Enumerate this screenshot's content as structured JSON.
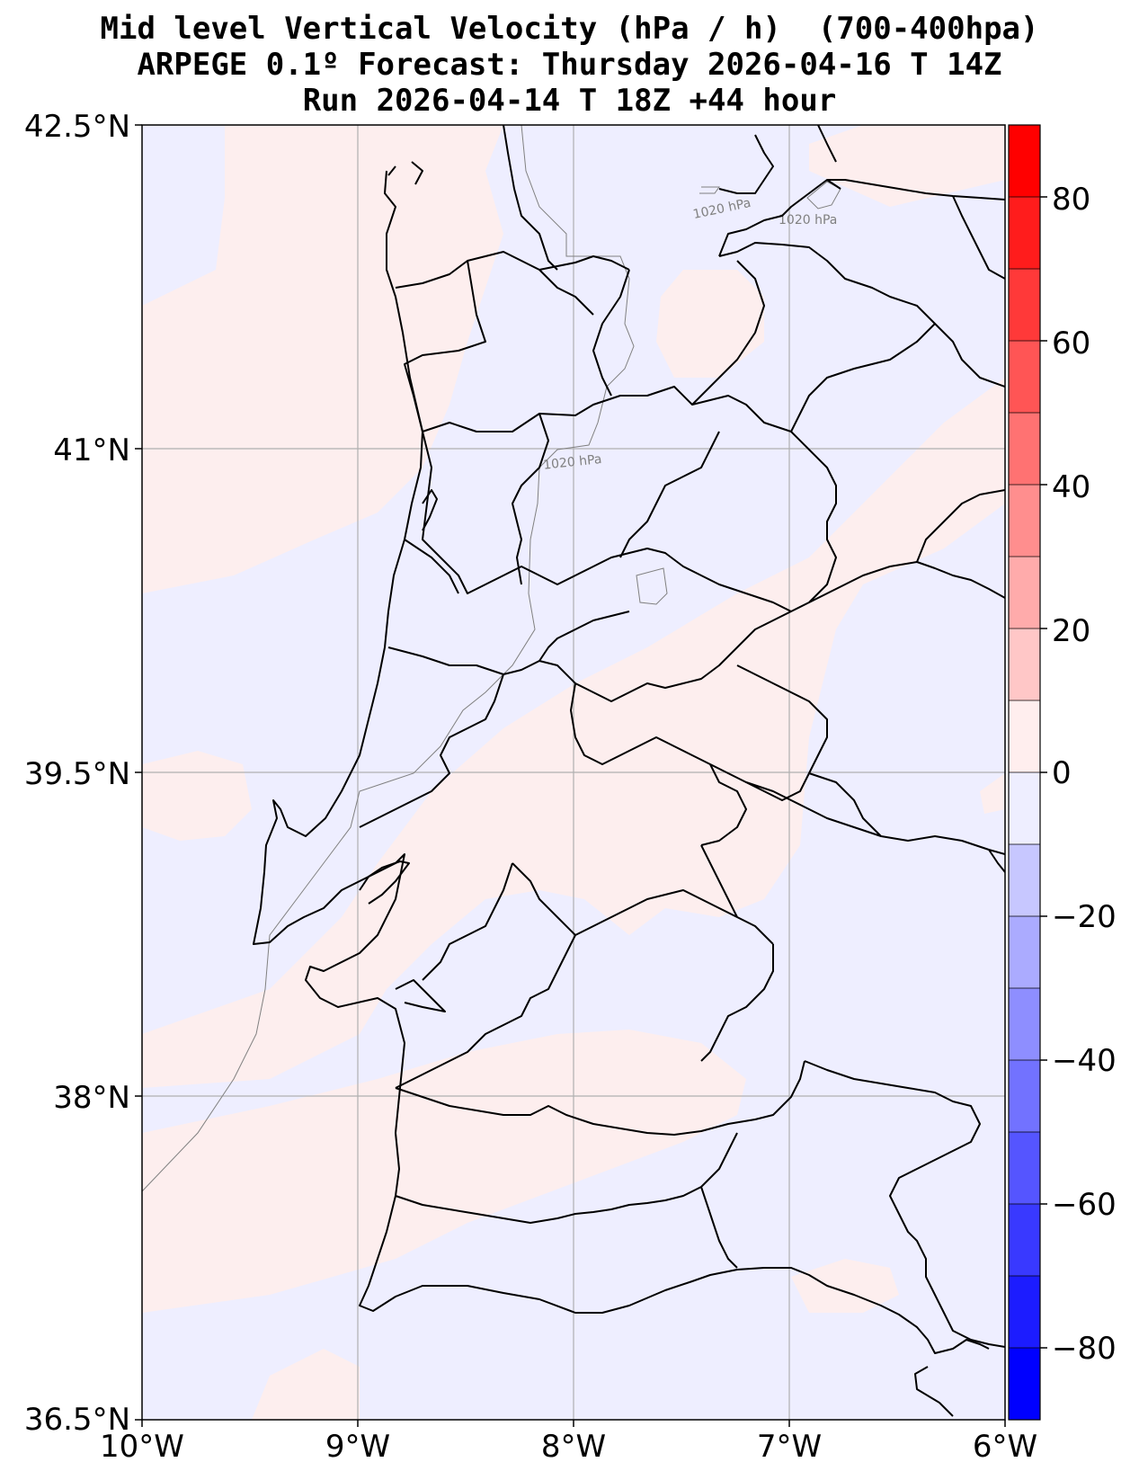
{
  "title": {
    "line1": "Mid level Vertical Velocity (hPa / h)  (700-400hpa)",
    "line2": "ARPEGE 0.1º Forecast: Thursday 2026-04-16 T 14Z",
    "line3": "Run 2026-04-14 T 18Z +44 hour"
  },
  "map": {
    "region": "Portugal",
    "lon_range": [
      -10,
      -6
    ],
    "lat_range": [
      36.5,
      42.5
    ],
    "lon_ticks": [
      "10°W",
      "9°W",
      "8°W",
      "7°W",
      "6°W"
    ],
    "lat_ticks": [
      "42.5°N",
      "41°N",
      "39.5°N",
      "38°N",
      "36.5°N"
    ],
    "grid": true,
    "isobar_labels": [
      "1020 hPa",
      "1020 hPa",
      "1020 hPa"
    ]
  },
  "colorbar": {
    "tick_labels": [
      "80",
      "60",
      "40",
      "20",
      "0",
      "−20",
      "−40",
      "−60",
      "−80"
    ],
    "levels": [
      -90,
      -80,
      -70,
      -60,
      -50,
      -40,
      -30,
      -20,
      -10,
      0,
      10,
      20,
      30,
      40,
      50,
      60,
      70,
      80,
      90
    ],
    "colors": [
      "#0000ff",
      "#1c1cff",
      "#3939ff",
      "#5555ff",
      "#7272ff",
      "#8e8eff",
      "#ababff",
      "#c7c7ff",
      "#eeeeff",
      "#ffeeee",
      "#ffc7c7",
      "#ffabab",
      "#ff8e8e",
      "#ff7272",
      "#ff5555",
      "#ff3939",
      "#ff1c1c",
      "#ff0000"
    ]
  },
  "colors": {
    "positive_fill": "#fdeeee",
    "negative_fill": "#eeeeff",
    "border": "#000000",
    "grid": "#b0b0b0",
    "isobar": "#808080"
  }
}
